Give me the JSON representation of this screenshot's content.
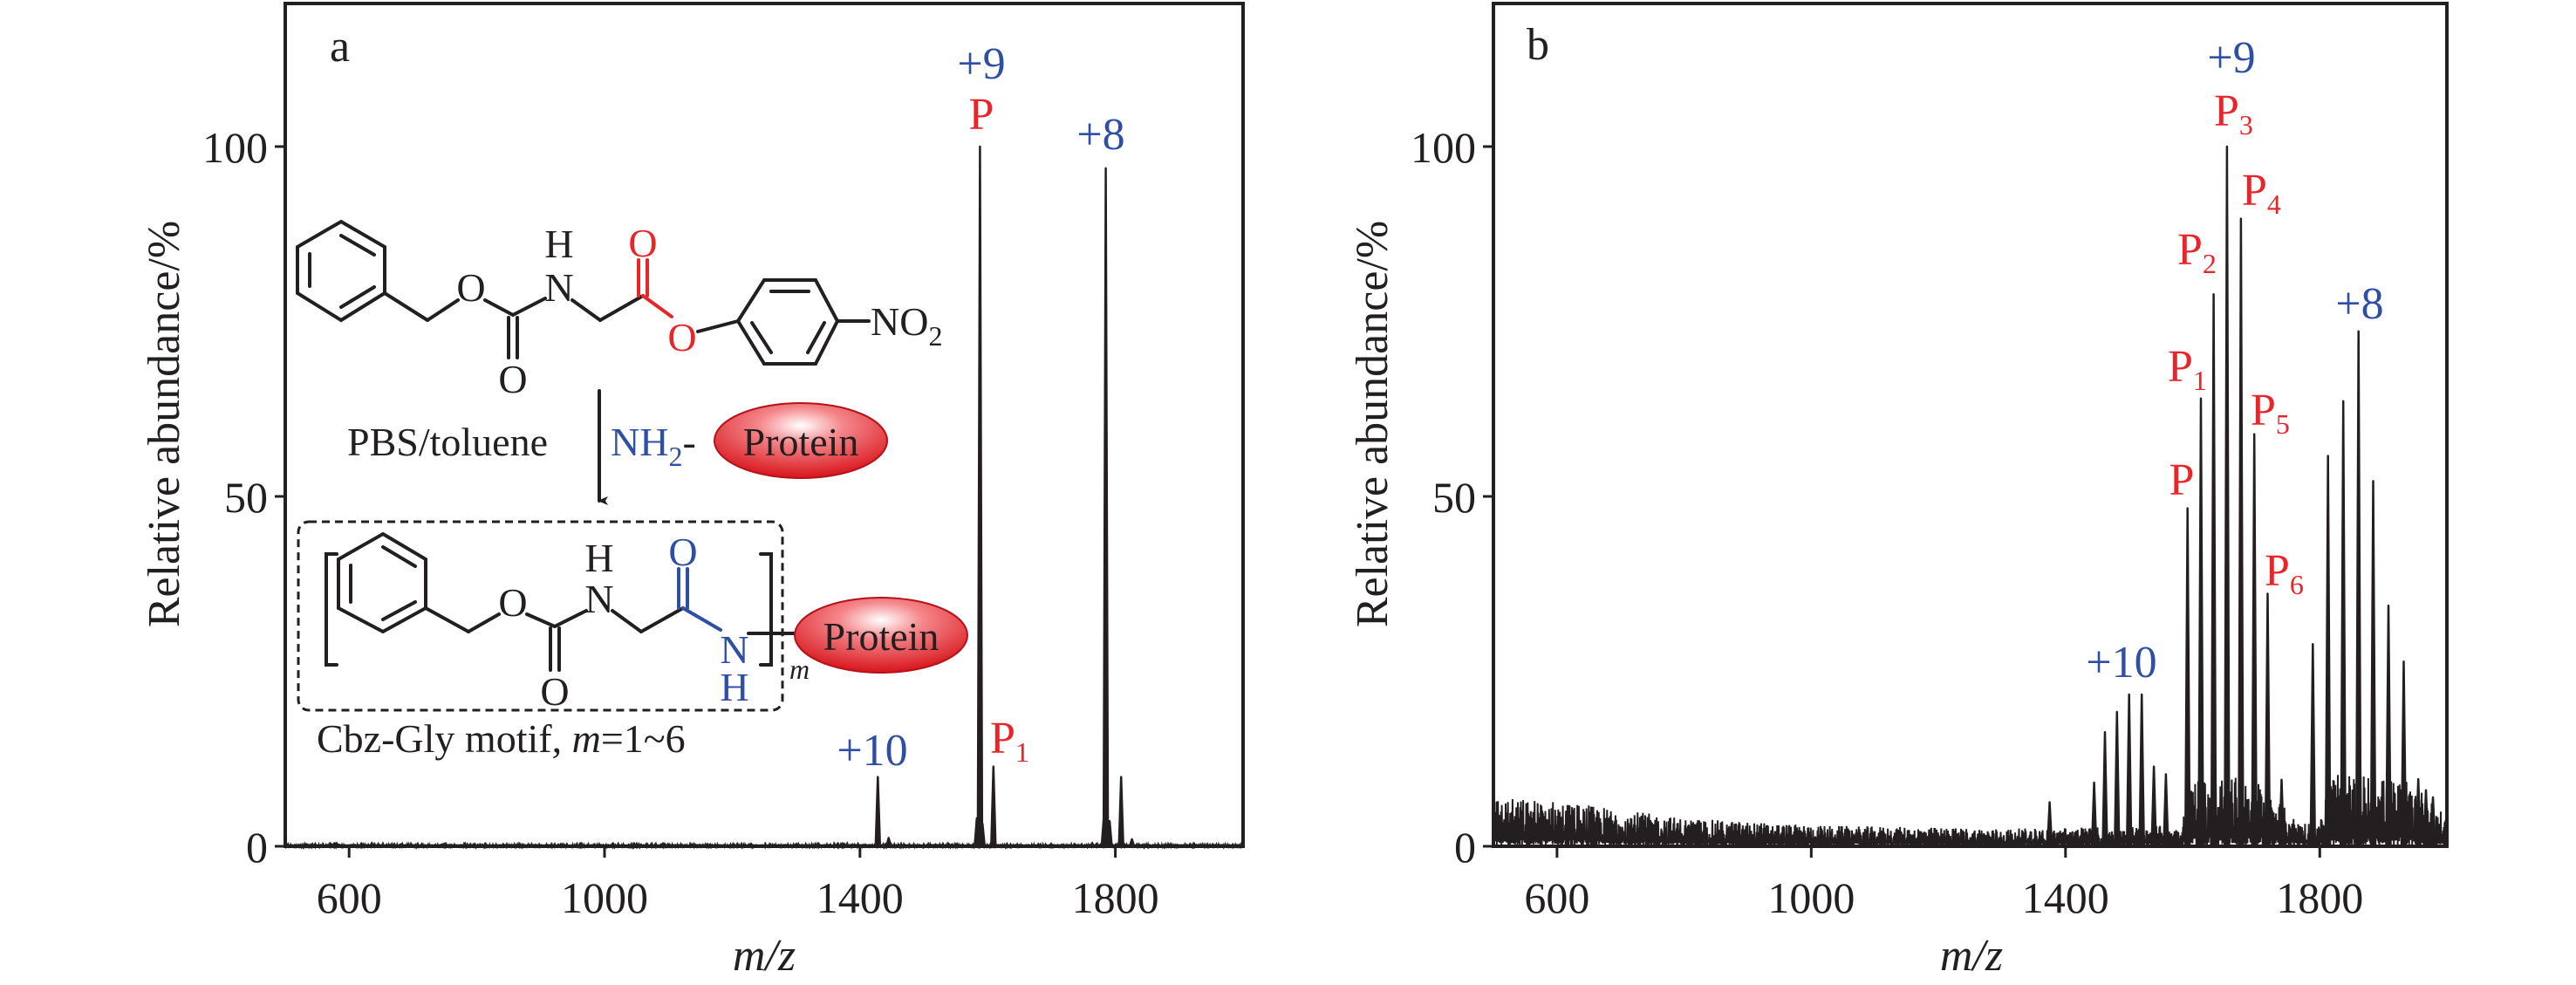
{
  "colors": {
    "charge_state": "#2e4fa3",
    "product": "#e8262a",
    "trace": "#231f20",
    "protein": "#e01f26"
  },
  "chart_data": [
    {
      "panel_label": "a",
      "type": "line",
      "title": "",
      "xlabel": "m/z",
      "ylabel": "Relative abundance/%",
      "xlim": [
        500,
        2000
      ],
      "ylim": [
        0,
        120
      ],
      "xticks": [
        600,
        1000,
        1400,
        1800
      ],
      "xtick_labels": [
        "600",
        "1000",
        "1400",
        "1800"
      ],
      "yticks": [
        0,
        50,
        100
      ],
      "ytick_labels": [
        "0",
        "50",
        "100"
      ],
      "grid": false,
      "peaks": [
        {
          "mz": 1428,
          "intensity": 9.9
        },
        {
          "mz": 1445,
          "intensity": 1.2
        },
        {
          "mz": 1583,
          "intensity": 4.0
        },
        {
          "mz": 1588,
          "intensity": 100
        },
        {
          "mz": 1592,
          "intensity": 3.2
        },
        {
          "mz": 1609,
          "intensity": 11.4
        },
        {
          "mz": 1782,
          "intensity": 4.2
        },
        {
          "mz": 1785,
          "intensity": 96.9
        },
        {
          "mz": 1791,
          "intensity": 3.6
        },
        {
          "mz": 1809,
          "intensity": 9.9
        },
        {
          "mz": 1826,
          "intensity": 1.0
        }
      ],
      "baseline_envelope": [
        [
          500,
          0.3
        ],
        [
          2000,
          0.3
        ]
      ],
      "annotations": [
        {
          "text": "+9",
          "sub": "",
          "color": "blue",
          "mz": 1588
        },
        {
          "text": "P",
          "sub": "",
          "color": "red",
          "mz": 1588
        },
        {
          "text": "+8",
          "sub": "",
          "color": "blue",
          "mz": 1785
        },
        {
          "text": "+10",
          "sub": "",
          "color": "blue",
          "mz": 1428
        },
        {
          "text": "P",
          "sub": "1",
          "color": "red",
          "mz": 1609
        }
      ]
    },
    {
      "panel_label": "b",
      "type": "line",
      "title": "",
      "xlabel": "m/z",
      "ylabel": "Relative abundance/%",
      "xlim": [
        500,
        2000
      ],
      "ylim": [
        0,
        120
      ],
      "xticks": [
        600,
        1000,
        1400,
        1800
      ],
      "xtick_labels": [
        "600",
        "1000",
        "1400",
        "1800"
      ],
      "yticks": [
        0,
        50,
        100
      ],
      "ytick_labels": [
        "0",
        "50",
        "100"
      ],
      "grid": false,
      "peaks": [
        {
          "mz": 1375,
          "intensity": 6.3
        },
        {
          "mz": 1445,
          "intensity": 9.1
        },
        {
          "mz": 1462,
          "intensity": 16.3
        },
        {
          "mz": 1481,
          "intensity": 19.2
        },
        {
          "mz": 1500,
          "intensity": 21.7
        },
        {
          "mz": 1520,
          "intensity": 21.7
        },
        {
          "mz": 1539,
          "intensity": 11.4
        },
        {
          "mz": 1558,
          "intensity": 10.3
        },
        {
          "mz": 1592,
          "intensity": 48.3
        },
        {
          "mz": 1613,
          "intensity": 64.0
        },
        {
          "mz": 1633,
          "intensity": 78.9
        },
        {
          "mz": 1654,
          "intensity": 100
        },
        {
          "mz": 1676,
          "intensity": 89.7
        },
        {
          "mz": 1697,
          "intensity": 58.9
        },
        {
          "mz": 1718,
          "intensity": 36.1
        },
        {
          "mz": 1740,
          "intensity": 9.5
        },
        {
          "mz": 1789,
          "intensity": 28.9
        },
        {
          "mz": 1813,
          "intensity": 55.8
        },
        {
          "mz": 1837,
          "intensity": 63.6
        },
        {
          "mz": 1861,
          "intensity": 73.6
        },
        {
          "mz": 1884,
          "intensity": 52.2
        },
        {
          "mz": 1908,
          "intensity": 34.4
        },
        {
          "mz": 1932,
          "intensity": 26.4
        },
        {
          "mz": 1955,
          "intensity": 9.6
        },
        {
          "mz": 1967,
          "intensity": 8.0
        },
        {
          "mz": 1978,
          "intensity": 7.0
        }
      ],
      "baseline_envelope": [
        [
          500,
          7
        ],
        [
          600,
          6.5
        ],
        [
          800,
          4
        ],
        [
          1000,
          3
        ],
        [
          1300,
          2.5
        ],
        [
          1580,
          3
        ],
        [
          1600,
          10
        ],
        [
          1700,
          10
        ],
        [
          1760,
          4
        ],
        [
          1800,
          3
        ],
        [
          1815,
          11
        ],
        [
          1950,
          9
        ],
        [
          2000,
          4
        ]
      ],
      "annotations": [
        {
          "text": "+9",
          "sub": "",
          "color": "blue",
          "mz": 1654
        },
        {
          "text": "P",
          "sub": "3",
          "color": "red",
          "mz": 1654
        },
        {
          "text": "P",
          "sub": "4",
          "color": "red",
          "mz": 1676
        },
        {
          "text": "P",
          "sub": "2",
          "color": "red",
          "mz": 1633
        },
        {
          "text": "+8",
          "sub": "",
          "color": "blue",
          "mz": 1861
        },
        {
          "text": "P",
          "sub": "1",
          "color": "red",
          "mz": 1613
        },
        {
          "text": "P",
          "sub": "5",
          "color": "red",
          "mz": 1697
        },
        {
          "text": "P",
          "sub": "",
          "color": "red",
          "mz": 1592
        },
        {
          "text": "P",
          "sub": "6",
          "color": "red",
          "mz": 1718
        },
        {
          "text": "+10",
          "sub": "",
          "color": "blue",
          "mz": 1500
        }
      ]
    }
  ],
  "scheme": {
    "reactant": {
      "o_ether": "O",
      "n": "N",
      "h": "H",
      "o_carbamate": "O",
      "o_ester_carbonyl": "O",
      "o_ester": "O",
      "nitro": "NO",
      "nitro_sub": "2"
    },
    "conditions": "PBS/toluene",
    "reagent": {
      "amine": "NH",
      "amine_sub": "2",
      "dash": "-",
      "protein": "Protein"
    },
    "product": {
      "o_ether": "O",
      "n": "N",
      "h": "H",
      "o_carbamate": "O",
      "o_amide": "O",
      "n_amide": "N",
      "h_amide": "H",
      "repeat": "m",
      "protein": "Protein"
    },
    "caption": {
      "prefix": "Cbz-Gly motif, ",
      "var": "m",
      "suffix": "=1~6"
    }
  }
}
